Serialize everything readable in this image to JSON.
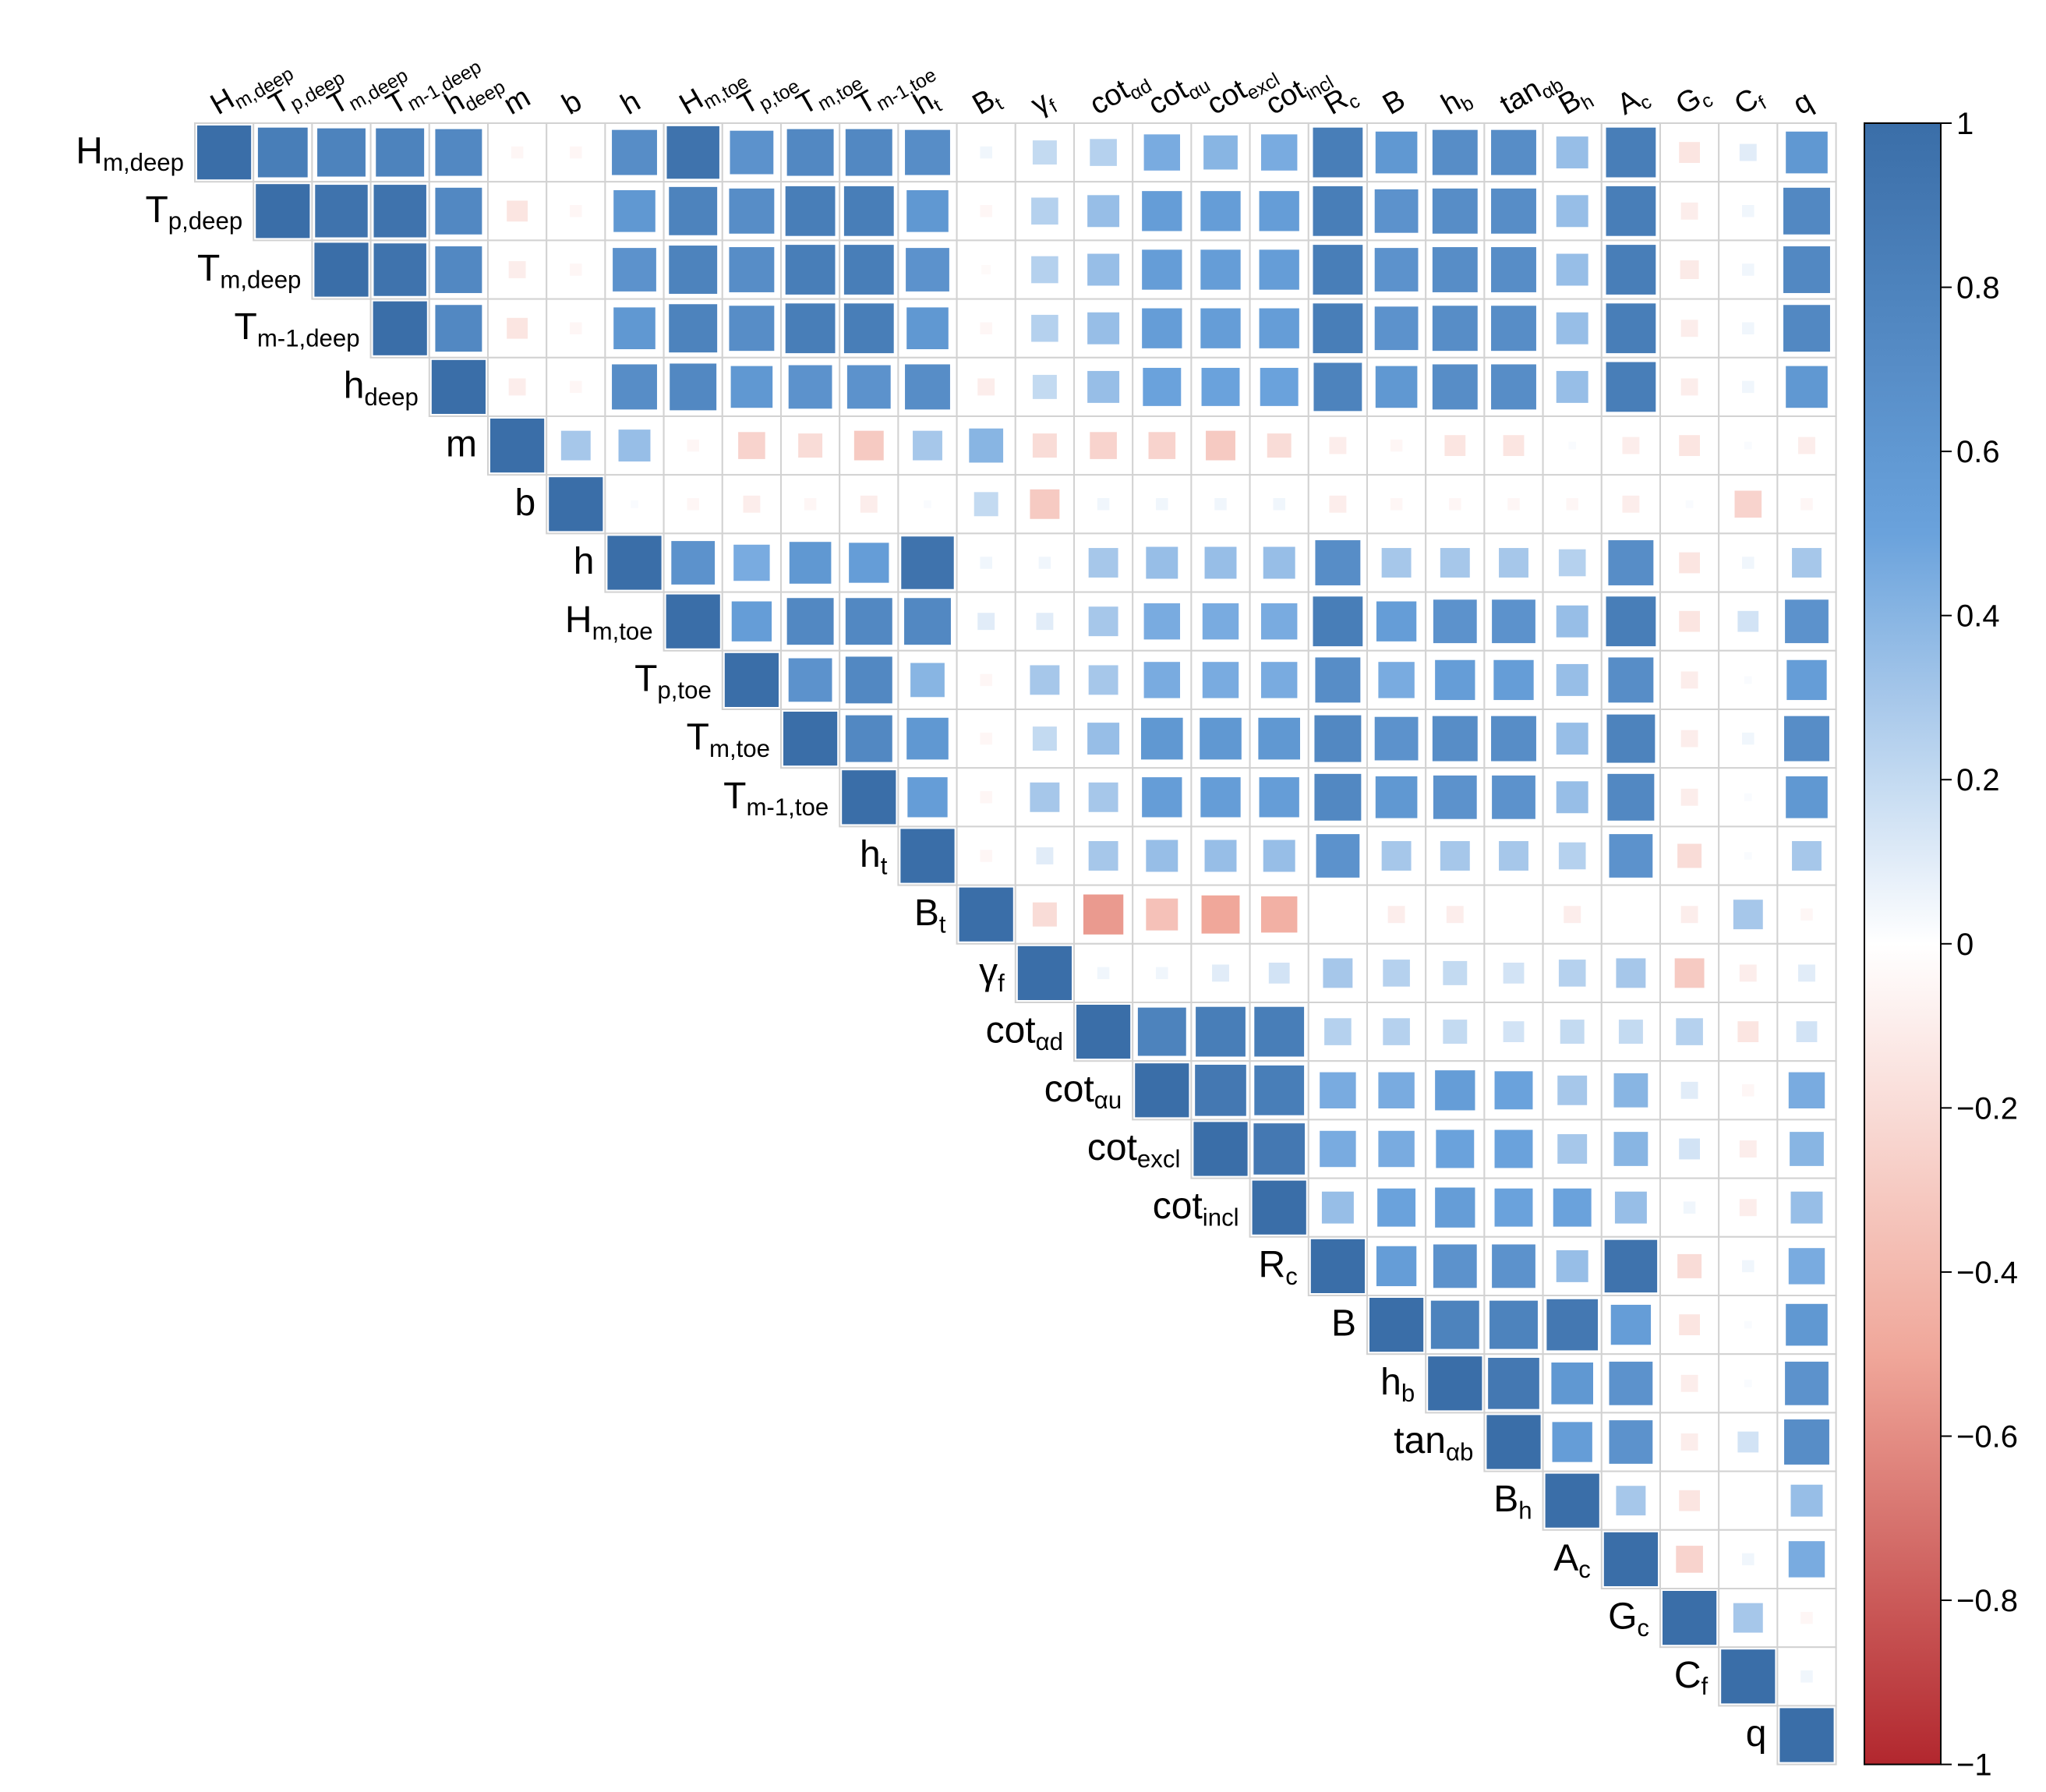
{
  "chart_data": {
    "type": "heatmap",
    "shape": "upper-triangle correlation matrix, square glyphs sized by |r|",
    "variables": [
      {
        "base": "H",
        "sub": "m,deep"
      },
      {
        "base": "T",
        "sub": "p,deep"
      },
      {
        "base": "T",
        "sub": "m,deep"
      },
      {
        "base": "T",
        "sub": "m-1,deep"
      },
      {
        "base": "h",
        "sub": "deep"
      },
      {
        "base": "m",
        "sub": ""
      },
      {
        "base": "b",
        "sub": ""
      },
      {
        "base": "h",
        "sub": ""
      },
      {
        "base": "H",
        "sub": "m,toe"
      },
      {
        "base": "T",
        "sub": "p,toe"
      },
      {
        "base": "T",
        "sub": "m,toe"
      },
      {
        "base": "T",
        "sub": "m-1,toe"
      },
      {
        "base": "h",
        "sub": "t"
      },
      {
        "base": "B",
        "sub": "t"
      },
      {
        "base": "γ",
        "sub": "f"
      },
      {
        "base": "cot",
        "sub": "αd"
      },
      {
        "base": "cot",
        "sub": "αu"
      },
      {
        "base": "cot",
        "sub": "excl"
      },
      {
        "base": "cot",
        "sub": "incl"
      },
      {
        "base": "R",
        "sub": "c"
      },
      {
        "base": "B",
        "sub": ""
      },
      {
        "base": "h",
        "sub": "b"
      },
      {
        "base": "tan",
        "sub": "αb"
      },
      {
        "base": "B",
        "sub": "h"
      },
      {
        "base": "A",
        "sub": "c"
      },
      {
        "base": "G",
        "sub": "c"
      },
      {
        "base": "C",
        "sub": "f"
      },
      {
        "base": "q",
        "sub": ""
      }
    ],
    "matrix": [
      [
        1,
        0.85,
        0.8,
        0.8,
        0.75,
        -0.05,
        -0.05,
        0.7,
        0.95,
        0.65,
        0.75,
        0.75,
        0.7,
        0.05,
        0.2,
        0.25,
        0.45,
        0.4,
        0.45,
        0.85,
        0.6,
        0.7,
        0.7,
        0.35,
        0.85,
        -0.15,
        0.1,
        0.6
      ],
      [
        null,
        1,
        0.95,
        0.95,
        0.75,
        -0.15,
        -0.05,
        0.6,
        0.8,
        0.7,
        0.85,
        0.85,
        0.6,
        -0.05,
        0.25,
        0.35,
        0.55,
        0.55,
        0.55,
        0.85,
        0.65,
        0.7,
        0.7,
        0.35,
        0.85,
        -0.1,
        0.05,
        0.75
      ],
      [
        null,
        null,
        1,
        0.95,
        0.75,
        -0.1,
        -0.05,
        0.65,
        0.8,
        0.7,
        0.85,
        0.85,
        0.65,
        -0.03,
        0.25,
        0.35,
        0.55,
        0.55,
        0.55,
        0.85,
        0.65,
        0.7,
        0.7,
        0.35,
        0.85,
        -0.12,
        0.05,
        0.75
      ],
      [
        null,
        null,
        null,
        1,
        0.75,
        -0.15,
        -0.05,
        0.6,
        0.8,
        0.7,
        0.85,
        0.85,
        0.6,
        -0.05,
        0.25,
        0.35,
        0.55,
        0.55,
        0.55,
        0.85,
        0.65,
        0.7,
        0.7,
        0.35,
        0.85,
        -0.1,
        0.05,
        0.75
      ],
      [
        null,
        null,
        null,
        null,
        1,
        -0.1,
        -0.05,
        0.7,
        0.75,
        0.6,
        0.65,
        0.65,
        0.7,
        -0.1,
        0.2,
        0.35,
        0.5,
        0.5,
        0.5,
        0.8,
        0.6,
        0.7,
        0.7,
        0.35,
        0.85,
        -0.1,
        0.05,
        0.6
      ],
      [
        null,
        null,
        null,
        null,
        null,
        1,
        0.3,
        0.35,
        -0.05,
        -0.25,
        -0.2,
        -0.3,
        0.3,
        0.4,
        -0.2,
        -0.25,
        -0.25,
        -0.3,
        -0.2,
        -0.1,
        -0.05,
        -0.15,
        -0.15,
        0.02,
        -0.1,
        -0.15,
        0.02,
        -0.1
      ],
      [
        null,
        null,
        null,
        null,
        null,
        null,
        1,
        0.02,
        -0.05,
        -0.1,
        -0.05,
        -0.1,
        0.02,
        0.2,
        -0.3,
        0.05,
        0.05,
        0.05,
        0.05,
        -0.1,
        -0.05,
        -0.05,
        -0.05,
        -0.05,
        -0.1,
        0.02,
        -0.25,
        -0.05
      ],
      [
        null,
        null,
        null,
        null,
        null,
        null,
        null,
        1,
        0.65,
        0.45,
        0.6,
        0.55,
        0.95,
        0.05,
        0.05,
        0.3,
        0.35,
        0.35,
        0.35,
        0.7,
        0.3,
        0.3,
        0.3,
        0.25,
        0.7,
        -0.15,
        0.05,
        0.3
      ],
      [
        null,
        null,
        null,
        null,
        null,
        null,
        null,
        null,
        1,
        0.55,
        0.75,
        0.75,
        0.75,
        0.1,
        0.1,
        0.3,
        0.45,
        0.45,
        0.45,
        0.85,
        0.55,
        0.65,
        0.65,
        0.35,
        0.85,
        -0.15,
        0.15,
        0.65
      ],
      [
        null,
        null,
        null,
        null,
        null,
        null,
        null,
        null,
        null,
        1,
        0.65,
        0.75,
        0.4,
        -0.05,
        0.3,
        0.3,
        0.45,
        0.45,
        0.45,
        0.7,
        0.45,
        0.55,
        0.55,
        0.35,
        0.7,
        -0.1,
        0.02,
        0.55
      ],
      [
        null,
        null,
        null,
        null,
        null,
        null,
        null,
        null,
        null,
        null,
        1,
        0.75,
        0.6,
        -0.05,
        0.2,
        0.35,
        0.6,
        0.6,
        0.6,
        0.75,
        0.65,
        0.7,
        0.7,
        0.35,
        0.8,
        -0.1,
        0.05,
        0.7
      ],
      [
        null,
        null,
        null,
        null,
        null,
        null,
        null,
        null,
        null,
        null,
        null,
        1,
        0.55,
        -0.05,
        0.3,
        0.3,
        0.55,
        0.55,
        0.55,
        0.75,
        0.6,
        0.65,
        0.65,
        0.35,
        0.75,
        -0.1,
        0.02,
        0.6
      ],
      [
        null,
        null,
        null,
        null,
        null,
        null,
        null,
        null,
        null,
        null,
        null,
        null,
        1,
        -0.05,
        0.1,
        0.3,
        0.35,
        0.35,
        0.35,
        0.65,
        0.3,
        0.3,
        0.3,
        0.25,
        0.65,
        -0.2,
        0.02,
        0.3
      ],
      [
        null,
        null,
        null,
        null,
        null,
        null,
        null,
        null,
        null,
        null,
        null,
        null,
        null,
        1,
        -0.2,
        -0.55,
        -0.35,
        -0.5,
        -0.45,
        0,
        -0.1,
        -0.1,
        0,
        -0.1,
        0,
        -0.1,
        0.3,
        -0.05
      ],
      [
        null,
        null,
        null,
        null,
        null,
        null,
        null,
        null,
        null,
        null,
        null,
        null,
        null,
        null,
        1,
        0.05,
        0.05,
        0.1,
        0.15,
        0.3,
        0.25,
        0.2,
        0.15,
        0.25,
        0.3,
        -0.3,
        -0.1,
        0.1
      ],
      [
        null,
        null,
        null,
        null,
        null,
        null,
        null,
        null,
        null,
        null,
        null,
        null,
        null,
        null,
        null,
        1,
        0.8,
        0.85,
        0.85,
        0.25,
        0.25,
        0.2,
        0.15,
        0.2,
        0.2,
        0.25,
        -0.15,
        0.15
      ],
      [
        null,
        null,
        null,
        null,
        null,
        null,
        null,
        null,
        null,
        null,
        null,
        null,
        null,
        null,
        null,
        null,
        1,
        0.9,
        0.85,
        0.45,
        0.45,
        0.55,
        0.5,
        0.3,
        0.4,
        0.1,
        -0.05,
        0.45
      ],
      [
        null,
        null,
        null,
        null,
        null,
        null,
        null,
        null,
        null,
        null,
        null,
        null,
        null,
        null,
        null,
        null,
        null,
        1,
        0.9,
        0.45,
        0.45,
        0.5,
        0.5,
        0.3,
        0.4,
        0.15,
        -0.1,
        0.4
      ],
      [
        null,
        null,
        null,
        null,
        null,
        null,
        null,
        null,
        null,
        null,
        null,
        null,
        null,
        null,
        null,
        null,
        null,
        null,
        1,
        0.35,
        0.5,
        0.55,
        0.5,
        0.5,
        0.35,
        0.05,
        -0.1,
        0.35
      ],
      [
        null,
        null,
        null,
        null,
        null,
        null,
        null,
        null,
        null,
        null,
        null,
        null,
        null,
        null,
        null,
        null,
        null,
        null,
        null,
        1,
        0.55,
        0.65,
        0.65,
        0.35,
        0.95,
        -0.2,
        0.05,
        0.45
      ],
      [
        null,
        null,
        null,
        null,
        null,
        null,
        null,
        null,
        null,
        null,
        null,
        null,
        null,
        null,
        null,
        null,
        null,
        null,
        null,
        null,
        1,
        0.8,
        0.8,
        0.9,
        0.55,
        -0.15,
        0.02,
        0.6
      ],
      [
        null,
        null,
        null,
        null,
        null,
        null,
        null,
        null,
        null,
        null,
        null,
        null,
        null,
        null,
        null,
        null,
        null,
        null,
        null,
        null,
        null,
        1,
        0.9,
        0.6,
        0.65,
        -0.1,
        0.02,
        0.65
      ],
      [
        null,
        null,
        null,
        null,
        null,
        null,
        null,
        null,
        null,
        null,
        null,
        null,
        null,
        null,
        null,
        null,
        null,
        null,
        null,
        null,
        null,
        null,
        1,
        0.55,
        0.65,
        -0.1,
        0.15,
        0.7
      ],
      [
        null,
        null,
        null,
        null,
        null,
        null,
        null,
        null,
        null,
        null,
        null,
        null,
        null,
        null,
        null,
        null,
        null,
        null,
        null,
        null,
        null,
        null,
        null,
        1,
        0.3,
        -0.15,
        0,
        0.35
      ],
      [
        null,
        null,
        null,
        null,
        null,
        null,
        null,
        null,
        null,
        null,
        null,
        null,
        null,
        null,
        null,
        null,
        null,
        null,
        null,
        null,
        null,
        null,
        null,
        null,
        1,
        -0.25,
        0.05,
        0.45
      ],
      [
        null,
        null,
        null,
        null,
        null,
        null,
        null,
        null,
        null,
        null,
        null,
        null,
        null,
        null,
        null,
        null,
        null,
        null,
        null,
        null,
        null,
        null,
        null,
        null,
        null,
        1,
        0.3,
        -0.05
      ],
      [
        null,
        null,
        null,
        null,
        null,
        null,
        null,
        null,
        null,
        null,
        null,
        null,
        null,
        null,
        null,
        null,
        null,
        null,
        null,
        null,
        null,
        null,
        null,
        null,
        null,
        null,
        1,
        0.05
      ],
      [
        null,
        null,
        null,
        null,
        null,
        null,
        null,
        null,
        null,
        null,
        null,
        null,
        null,
        null,
        null,
        null,
        null,
        null,
        null,
        null,
        null,
        null,
        null,
        null,
        null,
        null,
        null,
        1
      ]
    ],
    "colorbar": {
      "ticks": [
        "1",
        "0.8",
        "0.6",
        "0.4",
        "0.2",
        "0",
        "−0.2",
        "−0.4",
        "−0.6",
        "−0.8",
        "−1"
      ],
      "range": [
        -1,
        1
      ]
    },
    "colors": {
      "positive_strong": "#3a6ea8",
      "positive_mid": "#6aa2dc",
      "neutral": "#ffffff",
      "negative_mid": "#f0a79a",
      "negative_strong": "#b2272e",
      "grid": "#d2d2d2"
    }
  }
}
